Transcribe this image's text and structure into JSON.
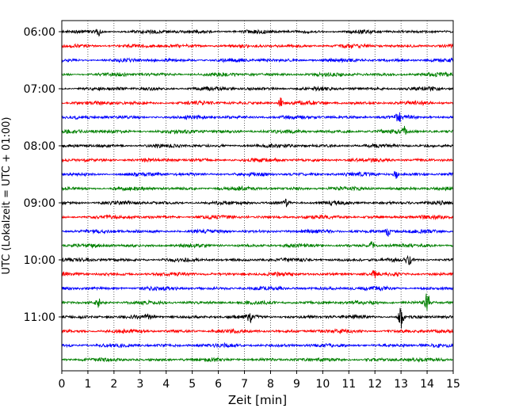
{
  "chart_data": {
    "type": "line",
    "title": "",
    "xlabel": "Zeit  [min]",
    "ylabel": "UTC (Lokalzeit = UTC + 01:00)",
    "xlim": [
      0,
      15
    ],
    "x_ticks": [
      0,
      1,
      2,
      3,
      4,
      5,
      6,
      7,
      8,
      9,
      10,
      11,
      12,
      13,
      14,
      15
    ],
    "y_ticks": [
      "06:00",
      "07:00",
      "08:00",
      "09:00",
      "10:00",
      "11:00"
    ],
    "grid": "vertical dotted at each minute",
    "trace_colors": [
      "#000000",
      "#ff0000",
      "#0000ff",
      "#008000"
    ],
    "traces": [
      {
        "start": "06:00",
        "events": [
          {
            "x": 1.4,
            "amp": 0.25
          }
        ]
      },
      {
        "start": "06:15",
        "events": []
      },
      {
        "start": "06:30",
        "events": []
      },
      {
        "start": "06:45",
        "events": []
      },
      {
        "start": "07:00",
        "events": []
      },
      {
        "start": "07:15",
        "events": [
          {
            "x": 8.4,
            "amp": 0.35
          }
        ]
      },
      {
        "start": "07:30",
        "events": [
          {
            "x": 12.9,
            "amp": 0.35
          }
        ]
      },
      {
        "start": "07:45",
        "events": [
          {
            "x": 13.1,
            "amp": 0.4
          }
        ]
      },
      {
        "start": "08:00",
        "events": []
      },
      {
        "start": "08:15",
        "events": []
      },
      {
        "start": "08:30",
        "events": [
          {
            "x": 12.8,
            "amp": 0.3
          }
        ]
      },
      {
        "start": "08:45",
        "events": []
      },
      {
        "start": "09:00",
        "events": [
          {
            "x": 8.6,
            "amp": 0.25
          }
        ]
      },
      {
        "start": "09:15",
        "events": []
      },
      {
        "start": "09:30",
        "events": [
          {
            "x": 12.5,
            "amp": 0.35
          }
        ]
      },
      {
        "start": "09:45",
        "events": [
          {
            "x": 11.9,
            "amp": 0.3
          }
        ]
      },
      {
        "start": "10:00",
        "events": [
          {
            "x": 13.3,
            "amp": 0.3
          }
        ]
      },
      {
        "start": "10:15",
        "events": [
          {
            "x": 12.0,
            "amp": 0.3
          }
        ]
      },
      {
        "start": "10:30",
        "events": []
      },
      {
        "start": "10:45",
        "events": [
          {
            "x": 1.4,
            "amp": 0.3
          },
          {
            "x": 14.0,
            "amp": 0.8
          }
        ]
      },
      {
        "start": "11:00",
        "events": [
          {
            "x": 3.3,
            "amp": 0.35
          },
          {
            "x": 7.2,
            "amp": 0.4
          },
          {
            "x": 13.0,
            "amp": 0.8
          }
        ]
      },
      {
        "start": "11:15",
        "events": []
      },
      {
        "start": "11:30",
        "events": []
      },
      {
        "start": "11:45",
        "events": []
      }
    ]
  }
}
